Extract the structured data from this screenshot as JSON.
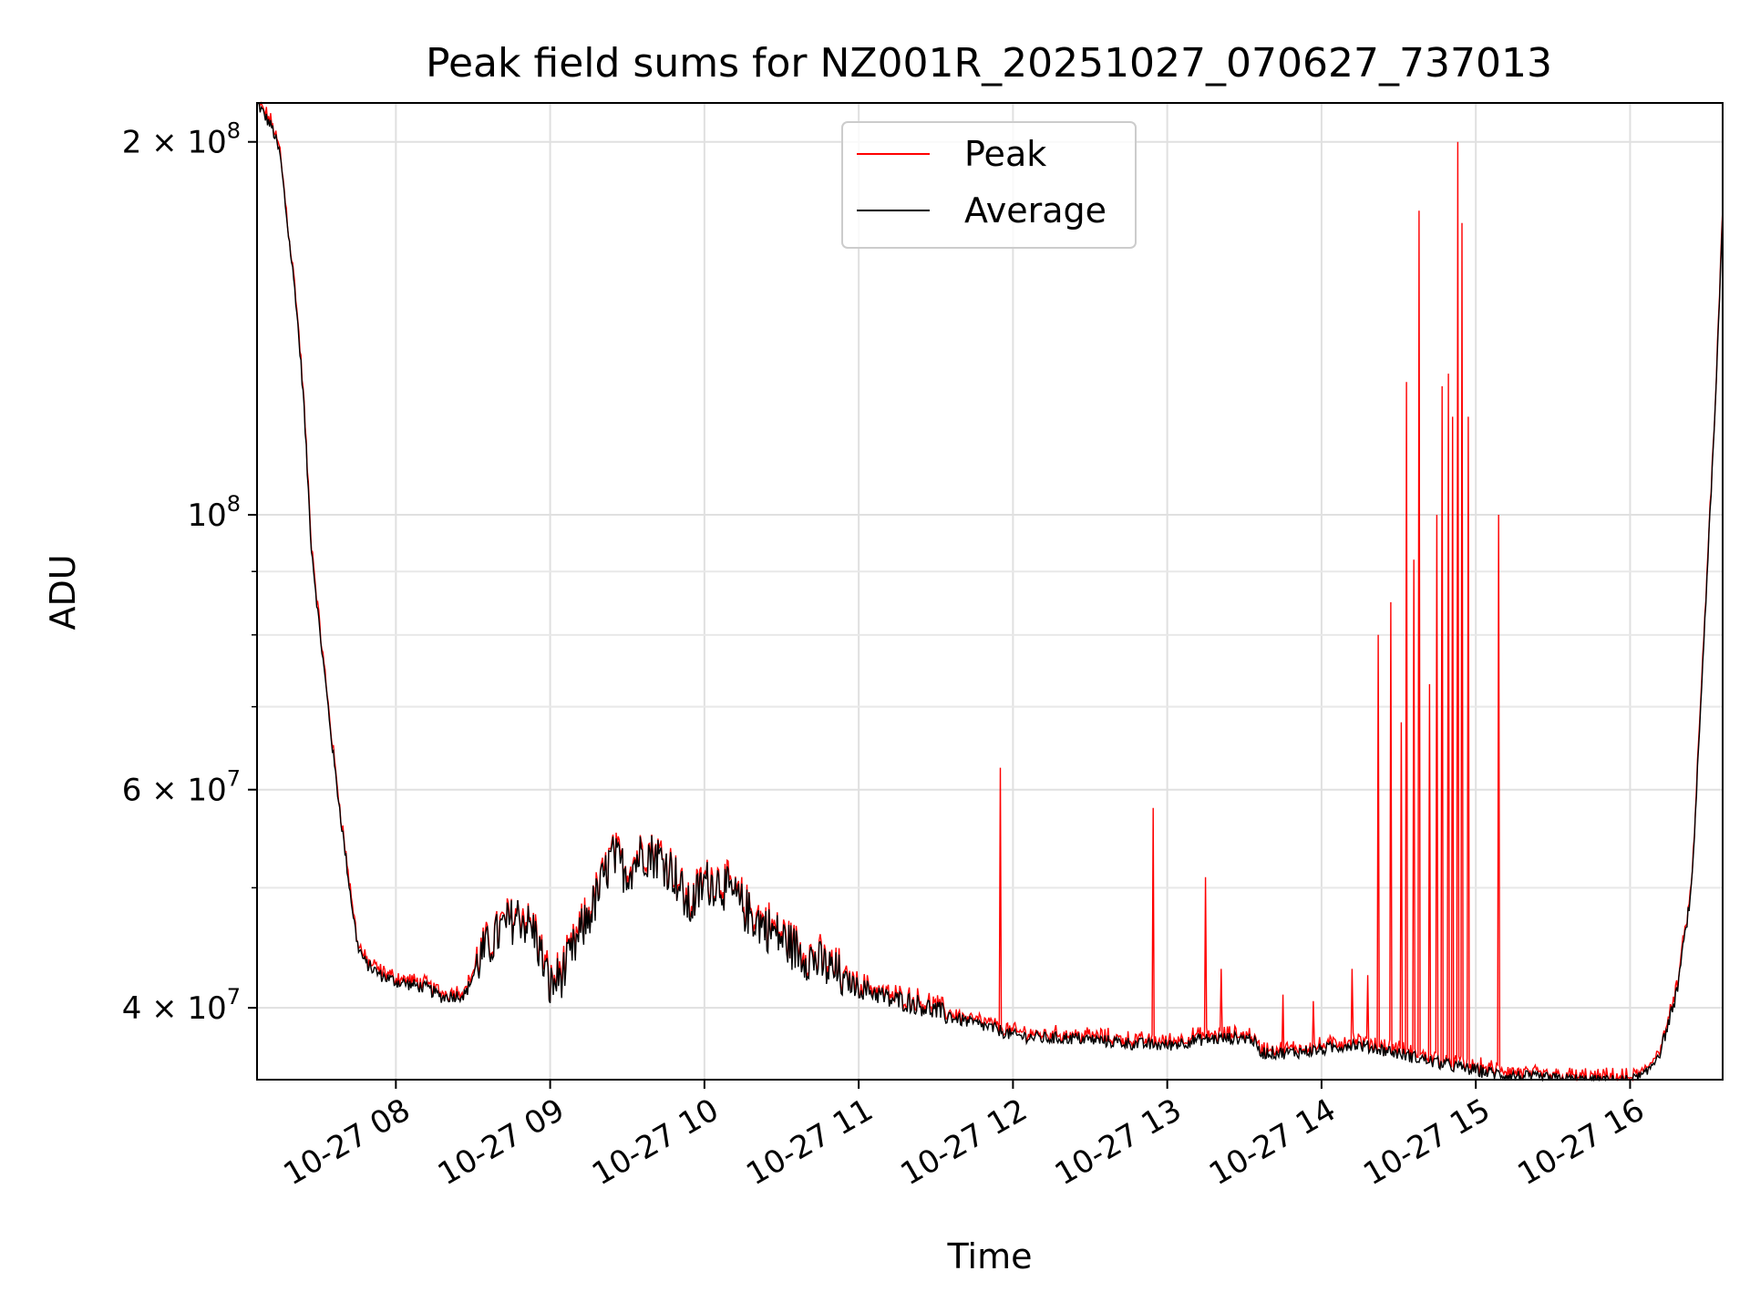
{
  "chart_data": {
    "type": "line",
    "title": "Peak field sums for NZ001R_20251027_070627_737013",
    "xlabel": "Time",
    "ylabel": "ADU",
    "yscale": "log",
    "grid": true,
    "legend_position": "top-center",
    "xlim": [
      7.1,
      16.6
    ],
    "ylim": [
      35000000,
      215000000
    ],
    "x_ticks": [
      {
        "value": 8,
        "label": "10-27 08"
      },
      {
        "value": 9,
        "label": "10-27 09"
      },
      {
        "value": 10,
        "label": "10-27 10"
      },
      {
        "value": 11,
        "label": "10-27 11"
      },
      {
        "value": 12,
        "label": "10-27 12"
      },
      {
        "value": 13,
        "label": "10-27 13"
      },
      {
        "value": 14,
        "label": "10-27 14"
      },
      {
        "value": 15,
        "label": "10-27 15"
      },
      {
        "value": 16,
        "label": "10-27 16"
      }
    ],
    "y_major_ticks": [
      {
        "value": 40000000,
        "mantissa": "4",
        "exp": "7"
      },
      {
        "value": 60000000,
        "mantissa": "6",
        "exp": "7"
      },
      {
        "value": 100000000,
        "mantissa": "",
        "exp": "8"
      },
      {
        "value": 200000000,
        "mantissa": "2",
        "exp": "8"
      }
    ],
    "y_minor_ticks": [
      50000000,
      70000000,
      80000000,
      90000000
    ],
    "series": [
      {
        "name": "Peak",
        "color": "#ff0000"
      },
      {
        "name": "Average",
        "color": "#000000"
      }
    ],
    "average_points": [
      [
        7.1,
        215000000
      ],
      [
        7.15,
        210000000
      ],
      [
        7.2,
        205000000
      ],
      [
        7.25,
        195000000
      ],
      [
        7.3,
        170000000
      ],
      [
        7.35,
        150000000
      ],
      [
        7.4,
        125000000
      ],
      [
        7.45,
        95000000
      ],
      [
        7.5,
        82000000
      ],
      [
        7.55,
        72000000
      ],
      [
        7.6,
        63000000
      ],
      [
        7.65,
        56000000
      ],
      [
        7.7,
        50000000
      ],
      [
        7.75,
        45000000
      ],
      [
        7.8,
        43500000
      ],
      [
        7.9,
        42500000
      ],
      [
        8.0,
        42000000
      ],
      [
        8.2,
        41500000
      ],
      [
        8.3,
        40800000
      ],
      [
        8.45,
        41000000
      ],
      [
        8.55,
        44000000
      ],
      [
        8.7,
        46500000
      ],
      [
        8.8,
        47500000
      ],
      [
        8.9,
        46000000
      ],
      [
        9.0,
        41500000
      ],
      [
        9.1,
        43000000
      ],
      [
        9.2,
        46000000
      ],
      [
        9.3,
        49000000
      ],
      [
        9.4,
        53000000
      ],
      [
        9.5,
        51500000
      ],
      [
        9.6,
        53500000
      ],
      [
        9.7,
        53000000
      ],
      [
        9.8,
        51500000
      ],
      [
        9.9,
        48000000
      ],
      [
        10.0,
        50500000
      ],
      [
        10.1,
        50500000
      ],
      [
        10.2,
        49000000
      ],
      [
        10.3,
        47500000
      ],
      [
        10.4,
        46500000
      ],
      [
        10.5,
        45500000
      ],
      [
        10.6,
        44500000
      ],
      [
        10.7,
        43800000
      ],
      [
        10.8,
        43000000
      ],
      [
        10.9,
        42200000
      ],
      [
        11.0,
        41500000
      ],
      [
        11.1,
        41200000
      ],
      [
        11.2,
        40600000
      ],
      [
        11.3,
        40500000
      ],
      [
        11.4,
        40200000
      ],
      [
        11.5,
        39800000
      ],
      [
        11.6,
        39300000
      ],
      [
        11.7,
        39000000
      ],
      [
        11.8,
        38700000
      ],
      [
        11.9,
        38400000
      ],
      [
        12.0,
        38000000
      ],
      [
        12.2,
        37800000
      ],
      [
        12.4,
        37800000
      ],
      [
        12.6,
        37600000
      ],
      [
        12.8,
        37400000
      ],
      [
        13.0,
        37300000
      ],
      [
        13.2,
        37700000
      ],
      [
        13.4,
        37800000
      ],
      [
        13.55,
        37800000
      ],
      [
        13.6,
        36800000
      ],
      [
        13.8,
        36800000
      ],
      [
        14.0,
        37000000
      ],
      [
        14.2,
        37400000
      ],
      [
        14.4,
        37000000
      ],
      [
        14.6,
        36500000
      ],
      [
        14.8,
        36000000
      ],
      [
        15.0,
        35600000
      ],
      [
        15.2,
        35300000
      ],
      [
        15.4,
        35100000
      ],
      [
        15.6,
        35000000
      ],
      [
        15.8,
        34900000
      ],
      [
        16.0,
        34900000
      ],
      [
        16.1,
        35300000
      ],
      [
        16.2,
        37000000
      ],
      [
        16.3,
        41000000
      ],
      [
        16.4,
        50000000
      ],
      [
        16.5,
        90000000
      ],
      [
        16.55,
        120000000
      ],
      [
        16.6,
        175000000
      ]
    ],
    "peak_spikes": [
      [
        11.92,
        62500000
      ],
      [
        12.91,
        58000000
      ],
      [
        13.25,
        51000000
      ],
      [
        13.35,
        43000000
      ],
      [
        13.75,
        41000000
      ],
      [
        13.95,
        40500000
      ],
      [
        14.2,
        43000000
      ],
      [
        14.3,
        42500000
      ],
      [
        14.37,
        80000000
      ],
      [
        14.45,
        85000000
      ],
      [
        14.52,
        68000000
      ],
      [
        14.55,
        128000000
      ],
      [
        14.6,
        92000000
      ],
      [
        14.63,
        176000000
      ],
      [
        14.7,
        73000000
      ],
      [
        14.75,
        100000000
      ],
      [
        14.78,
        127000000
      ],
      [
        14.82,
        130000000
      ],
      [
        14.85,
        120000000
      ],
      [
        14.88,
        200000000
      ],
      [
        14.91,
        172000000
      ],
      [
        14.95,
        120000000
      ],
      [
        15.15,
        100000000
      ]
    ]
  }
}
